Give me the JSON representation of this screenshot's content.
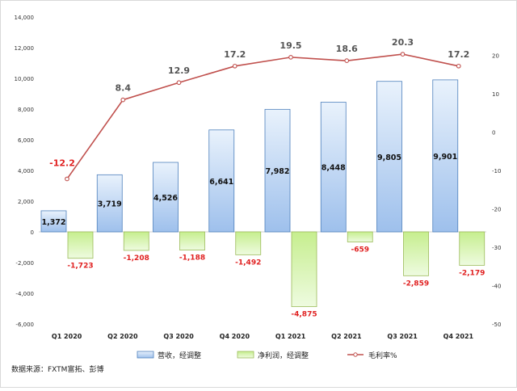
{
  "chart_data": {
    "type": "bar",
    "categories": [
      "Q1 2020",
      "Q2 2020",
      "Q3 2020",
      "Q4 2020",
      "Q1 2021",
      "Q2 2021",
      "Q3 2021",
      "Q4 2021"
    ],
    "series": [
      {
        "name": "营收，经调整",
        "type": "bar",
        "axis": "left",
        "values": [
          1372,
          3719,
          4526,
          6641,
          7982,
          8448,
          9805,
          9901
        ],
        "labels": [
          "1,372",
          "3,719",
          "4,526",
          "6,641",
          "7,982",
          "8,448",
          "9,805",
          "9,901"
        ]
      },
      {
        "name": "净利润，经调整",
        "type": "bar",
        "axis": "left",
        "values": [
          -1723,
          -1208,
          -1188,
          -1492,
          -4875,
          -659,
          -2859,
          -2179
        ],
        "labels": [
          "-1,723",
          "-1,208",
          "-1,188",
          "-1,492",
          "-4,875",
          "-659",
          "-2,859",
          "-2,179"
        ]
      },
      {
        "name": "毛利率%",
        "type": "line",
        "axis": "right",
        "values": [
          -12.2,
          8.4,
          12.9,
          17.2,
          19.5,
          18.6,
          20.3,
          17.2
        ],
        "labels": [
          "-12.2",
          "8.4",
          "12.9",
          "17.2",
          "19.5",
          "18.6",
          "20.3",
          "17.2"
        ]
      }
    ],
    "y_left": {
      "min": -6000,
      "max": 14000,
      "step": 2000,
      "tick_labels": [
        "-6,000",
        "-4,000",
        "-2,000",
        "0",
        "2,000",
        "4,000",
        "6,000",
        "8,000",
        "10,000",
        "12,000",
        "14,000"
      ]
    },
    "y_right": {
      "min": -50,
      "max": 30,
      "step": 10,
      "tick_labels": [
        "-50",
        "-40",
        "-30",
        "-20",
        "-10",
        "0",
        "10",
        "20"
      ]
    },
    "legend_position": "bottom",
    "grid": false,
    "colors": {
      "revenue": "#a9c8f0",
      "profit": "#d6f5a8",
      "margin_line": "#c0504d",
      "negative_label": "#e02020"
    },
    "source": "数据来源：FXTM富拓、彭博"
  }
}
